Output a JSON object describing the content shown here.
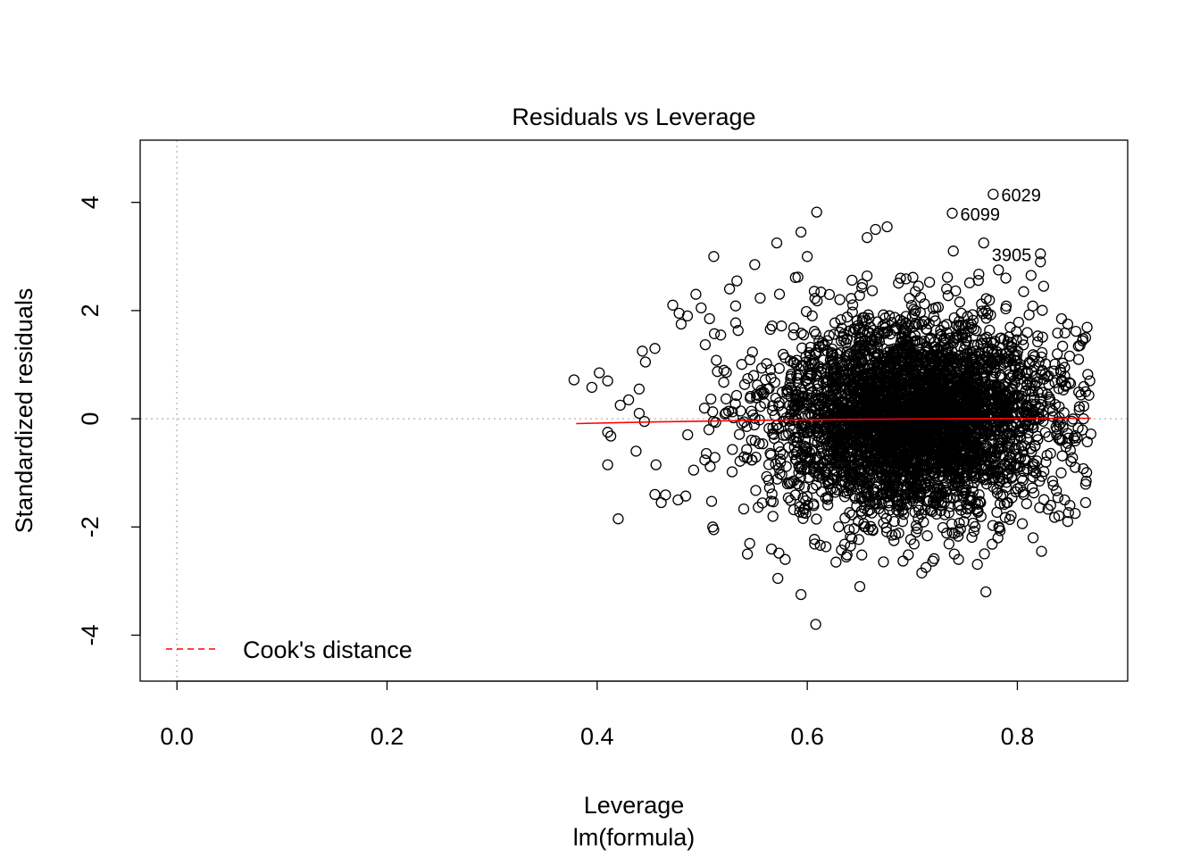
{
  "chart_data": {
    "type": "scatter",
    "title": "Residuals vs Leverage",
    "xlabel": "Leverage",
    "sublabel": "lm(formula)",
    "ylabel": "Standardized residuals",
    "xlim": [
      -0.035,
      0.905
    ],
    "ylim": [
      -4.85,
      5.15
    ],
    "x_ticks": [
      0.0,
      0.2,
      0.4,
      0.6,
      0.8
    ],
    "x_tick_labels": [
      "0.0",
      "0.2",
      "0.4",
      "0.6",
      "0.8"
    ],
    "y_ticks": [
      -4,
      -2,
      0,
      2,
      4
    ],
    "y_tick_labels": [
      "-4",
      "-2",
      "0",
      "2",
      "4"
    ],
    "reference_lines": {
      "x": 0,
      "y": 0,
      "style": "dotted",
      "color": "#bebebe"
    },
    "legend": {
      "position": "bottom-left",
      "label": "Cook's distance",
      "color": "#ff0000",
      "style": "dashed"
    },
    "smoother": {
      "color": "#ff0000",
      "points": [
        [
          0.38,
          -0.09
        ],
        [
          0.45,
          -0.06
        ],
        [
          0.55,
          -0.03
        ],
        [
          0.65,
          -0.01
        ],
        [
          0.75,
          0.0
        ],
        [
          0.87,
          0.01
        ]
      ]
    },
    "point_cloud": {
      "center": [
        0.7,
        0.0
      ],
      "leverage_range": [
        0.38,
        0.87
      ],
      "residual_range": [
        -3.8,
        4.15
      ]
    },
    "points": [
      [
        0.777,
        4.15
      ],
      [
        0.738,
        3.8
      ],
      [
        0.768,
        3.25
      ],
      [
        0.609,
        3.82
      ],
      [
        0.676,
        3.55
      ],
      [
        0.665,
        3.5
      ],
      [
        0.657,
        3.35
      ],
      [
        0.739,
        3.1
      ],
      [
        0.822,
        3.05
      ],
      [
        0.822,
        2.9
      ],
      [
        0.511,
        3.0
      ],
      [
        0.571,
        3.25
      ],
      [
        0.594,
        3.45
      ],
      [
        0.6,
        3.0
      ],
      [
        0.55,
        2.85
      ],
      [
        0.782,
        2.75
      ],
      [
        0.789,
        2.6
      ],
      [
        0.813,
        2.65
      ],
      [
        0.806,
        2.35
      ],
      [
        0.825,
        2.45
      ],
      [
        0.533,
        2.55
      ],
      [
        0.526,
        2.4
      ],
      [
        0.494,
        2.3
      ],
      [
        0.472,
        2.1
      ],
      [
        0.499,
        2.05
      ],
      [
        0.478,
        1.95
      ],
      [
        0.486,
        1.9
      ],
      [
        0.507,
        1.85
      ],
      [
        0.48,
        1.75
      ],
      [
        0.455,
        1.3
      ],
      [
        0.443,
        1.25
      ],
      [
        0.446,
        1.05
      ],
      [
        0.402,
        0.85
      ],
      [
        0.378,
        0.72
      ],
      [
        0.395,
        0.58
      ],
      [
        0.41,
        0.7
      ],
      [
        0.44,
        0.55
      ],
      [
        0.43,
        0.35
      ],
      [
        0.422,
        0.25
      ],
      [
        0.44,
        0.1
      ],
      [
        0.445,
        -0.05
      ],
      [
        0.41,
        -0.25
      ],
      [
        0.413,
        -0.32
      ],
      [
        0.437,
        -0.6
      ],
      [
        0.456,
        -0.85
      ],
      [
        0.41,
        -0.85
      ],
      [
        0.455,
        -1.4
      ],
      [
        0.477,
        -1.5
      ],
      [
        0.461,
        -1.55
      ],
      [
        0.42,
        -1.85
      ],
      [
        0.51,
        -2.0
      ],
      [
        0.511,
        -2.05
      ],
      [
        0.543,
        -2.5
      ],
      [
        0.579,
        -2.6
      ],
      [
        0.572,
        -2.95
      ],
      [
        0.594,
        -3.25
      ],
      [
        0.65,
        -3.1
      ],
      [
        0.77,
        -3.2
      ],
      [
        0.608,
        -3.8
      ],
      [
        0.709,
        -2.85
      ],
      [
        0.713,
        -2.75
      ],
      [
        0.744,
        -2.6
      ],
      [
        0.74,
        -2.5
      ],
      [
        0.842,
        1.85
      ],
      [
        0.848,
        1.75
      ],
      [
        0.865,
        1.5
      ],
      [
        0.867,
        0.82
      ],
      [
        0.865,
        0.5
      ],
      [
        0.863,
        0.0
      ],
      [
        0.87,
        -0.28
      ],
      [
        0.857,
        -0.35
      ],
      [
        0.855,
        -0.9
      ],
      [
        0.865,
        -1.55
      ],
      [
        0.85,
        -1.6
      ],
      [
        0.855,
        -1.75
      ],
      [
        0.848,
        -1.9
      ],
      [
        0.815,
        -2.2
      ],
      [
        0.823,
        -2.45
      ],
      [
        0.845,
        -1.5
      ],
      [
        0.845,
        0.95
      ],
      [
        0.838,
        1.2
      ]
    ],
    "labels": [
      {
        "text": "6029",
        "x": 0.777,
        "y": 4.15
      },
      {
        "text": "6099",
        "x": 0.738,
        "y": 3.8
      },
      {
        "text": "3905",
        "x": 0.768,
        "y": 3.05
      }
    ]
  }
}
